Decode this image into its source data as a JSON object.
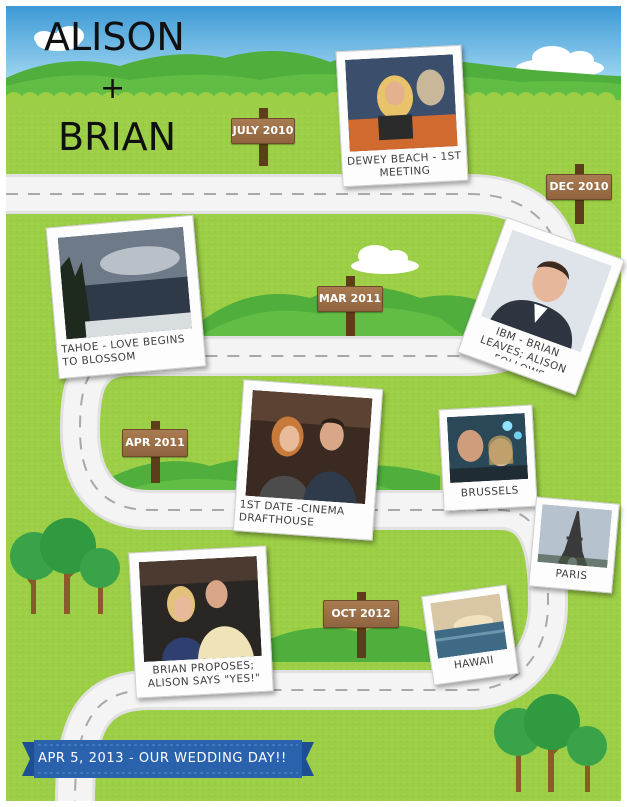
{
  "title": {
    "line1": "ALISON",
    "plus": "+",
    "line2": "BRIAN"
  },
  "signs": [
    {
      "label": "JULY 2010"
    },
    {
      "label": "DEC 2010"
    },
    {
      "label": "MAR 2011"
    },
    {
      "label": "APR 2011"
    },
    {
      "label": "OCT 2012"
    }
  ],
  "photos": [
    {
      "caption": "DEWEY BEACH - 1ST MEETING",
      "scene": "beach-couple-photo"
    },
    {
      "caption": "TAHOE - LOVE BEGINS TO BLOSSOM",
      "scene": "lake-tahoe-photo"
    },
    {
      "caption": "IBM - BRIAN LEAVES; ALISON FOLLOWS",
      "scene": "brian-portrait-photo"
    },
    {
      "caption": "1ST DATE -CINEMA DRAFTHOUSE",
      "scene": "first-date-photo"
    },
    {
      "caption": "BRUSSELS",
      "scene": "brussels-photo"
    },
    {
      "caption": "PARIS",
      "scene": "eiffel-tower-photo"
    },
    {
      "caption": "BRIAN PROPOSES; ALISON SAYS \"YES!\"",
      "scene": "proposal-photo"
    },
    {
      "caption": "HAWAII",
      "scene": "hawaii-sunset-photo"
    }
  ],
  "banner": {
    "text": "APR 5, 2013 - OUR WEDDING DAY!!"
  },
  "colors": {
    "sky": "#5eb4e6",
    "grass": "#9acd44",
    "hill": "#4fae3c",
    "road": "#efefef",
    "road_dash": "#a8a8a8",
    "sign_wood": "#9c7049",
    "banner_blue": "#2a62ad",
    "tree_leaves": "#3aa34a",
    "tree_trunk": "#8a5a2b"
  }
}
